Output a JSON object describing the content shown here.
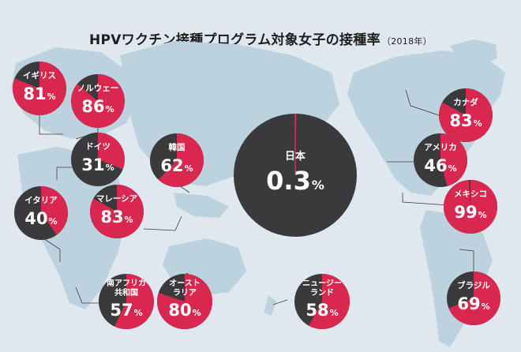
{
  "title": "HPVワクチン接種プログラム対象女子の接種率",
  "subtitle": "（2018年）",
  "colors": {
    "vaccinated": "#d8284f",
    "unvaccinated": "#3a3a3c",
    "label_text": "#ffffff",
    "map_land": "#bcd2de",
    "background": "#dfe8ee",
    "leader_line": "#3c3c3c"
  },
  "chart_data": {
    "type": "pie",
    "title": "HPVワクチン接種プログラム対象女子の接種率",
    "subtitle": "（2018年）",
    "unit": "%",
    "countries": [
      {
        "name": "イギリス",
        "value": 81
      },
      {
        "name": "ノルウェー",
        "value": 86
      },
      {
        "name": "ドイツ",
        "value": 31
      },
      {
        "name": "韓国",
        "value": 62
      },
      {
        "name": "イタリア",
        "value": 40
      },
      {
        "name": "マレーシア",
        "value": 83
      },
      {
        "name": "南アフリカ共和国",
        "value": 57
      },
      {
        "name": "オーストラリア",
        "value": 80
      },
      {
        "name": "日本",
        "value": 0.3
      },
      {
        "name": "ニュージーランド",
        "value": 58
      },
      {
        "name": "カナダ",
        "value": 83
      },
      {
        "name": "アメリカ",
        "value": 46
      },
      {
        "name": "メキシコ",
        "value": 99
      },
      {
        "name": "ブラジル",
        "value": 69
      }
    ]
  }
}
